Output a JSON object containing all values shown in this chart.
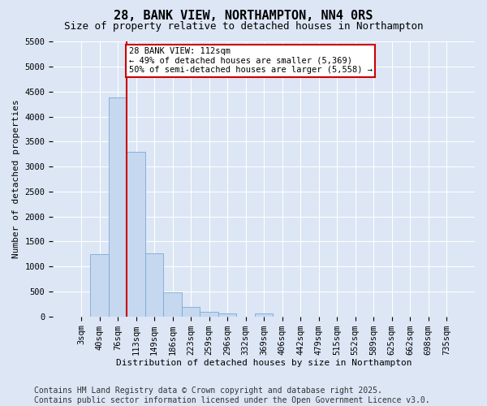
{
  "title": "28, BANK VIEW, NORTHAMPTON, NN4 0RS",
  "subtitle": "Size of property relative to detached houses in Northampton",
  "xlabel": "Distribution of detached houses by size in Northampton",
  "ylabel": "Number of detached properties",
  "categories": [
    "3sqm",
    "40sqm",
    "76sqm",
    "113sqm",
    "149sqm",
    "186sqm",
    "223sqm",
    "259sqm",
    "296sqm",
    "332sqm",
    "369sqm",
    "406sqm",
    "442sqm",
    "479sqm",
    "515sqm",
    "552sqm",
    "589sqm",
    "625sqm",
    "662sqm",
    "698sqm",
    "735sqm"
  ],
  "values": [
    0,
    1250,
    4380,
    3300,
    1270,
    490,
    190,
    90,
    60,
    0,
    60,
    0,
    0,
    0,
    0,
    0,
    0,
    0,
    0,
    0,
    0
  ],
  "bar_color": "#c5d8f0",
  "bar_edge_color": "#7aaad0",
  "vline_x_idx": 2.5,
  "vline_color": "#cc0000",
  "annotation_text": "28 BANK VIEW: 112sqm\n← 49% of detached houses are smaller (5,369)\n50% of semi-detached houses are larger (5,558) →",
  "annotation_box_facecolor": "#ffffff",
  "annotation_box_edgecolor": "#cc0000",
  "ylim": [
    0,
    5500
  ],
  "yticks": [
    0,
    500,
    1000,
    1500,
    2000,
    2500,
    3000,
    3500,
    4000,
    4500,
    5000,
    5500
  ],
  "background_color": "#dce6f5",
  "plot_background_color": "#dce6f5",
  "grid_color": "#ffffff",
  "title_fontsize": 11,
  "subtitle_fontsize": 9,
  "axis_fontsize": 7.5,
  "footnote": "Contains HM Land Registry data © Crown copyright and database right 2025.\nContains public sector information licensed under the Open Government Licence v3.0.",
  "footnote_fontsize": 7
}
